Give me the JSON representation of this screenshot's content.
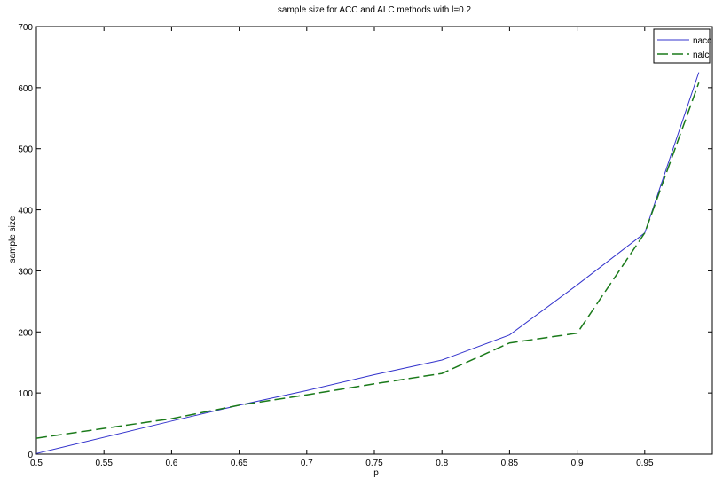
{
  "chart_data": {
    "type": "line",
    "title": "sample size for ACC and ALC methods with l=0.2",
    "xlabel": "p",
    "ylabel": "sample size",
    "xlim": [
      0.5,
      1.0
    ],
    "ylim": [
      0,
      700
    ],
    "xticks": [
      "0.5",
      "0.55",
      "0.6",
      "0.65",
      "0.7",
      "0.75",
      "0.8",
      "0.85",
      "0.9",
      "0.95"
    ],
    "yticks": [
      "0",
      "100",
      "200",
      "300",
      "400",
      "500",
      "600",
      "700"
    ],
    "x": [
      0.5,
      0.6,
      0.65,
      0.7,
      0.75,
      0.8,
      0.85,
      0.9,
      0.95,
      0.99
    ],
    "series": [
      {
        "name": "nacc",
        "color": "#3333cc",
        "dash": "solid",
        "values": [
          1,
          54,
          80,
          104,
          130,
          154,
          195,
          277,
          362,
          625
        ]
      },
      {
        "name": "nalc",
        "color": "#1a7a1a",
        "dash": "dashed",
        "values": [
          26,
          58,
          80,
          97,
          115,
          132,
          182,
          198,
          362,
          608
        ]
      }
    ],
    "legend_position": "top-right",
    "grid": false
  }
}
